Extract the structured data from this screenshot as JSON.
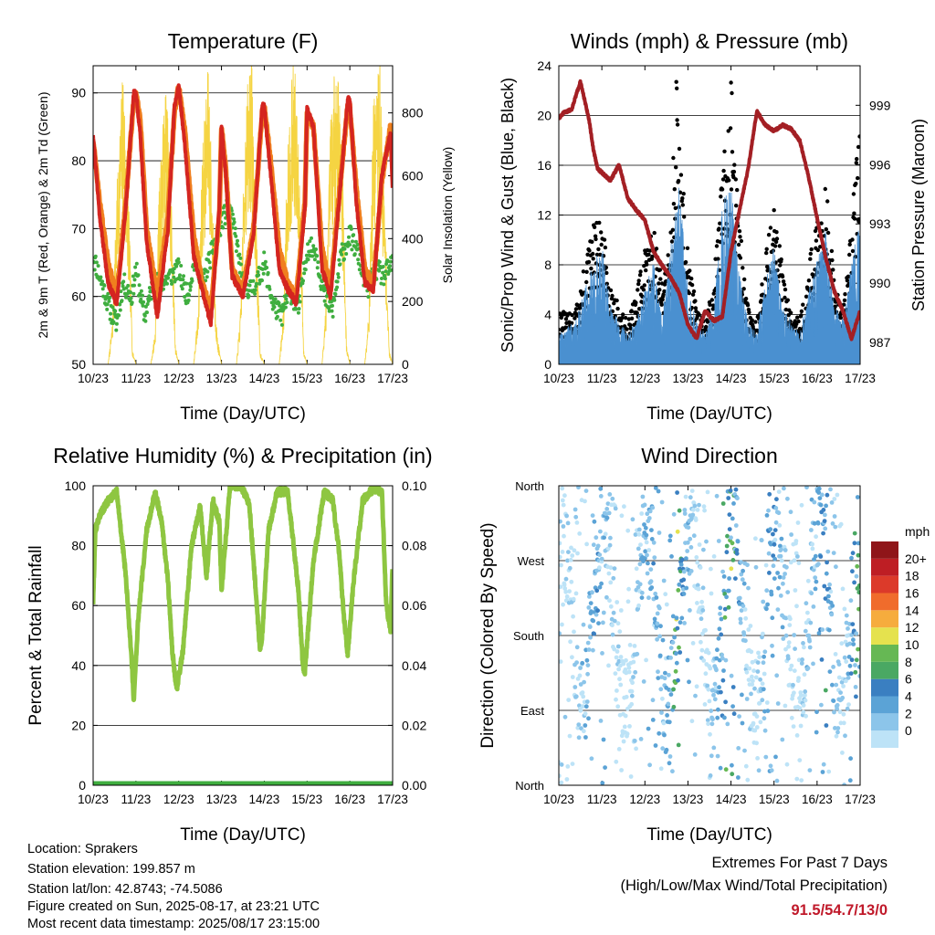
{
  "x_tick_labels": [
    "10/23",
    "11/23",
    "12/23",
    "13/23",
    "14/23",
    "15/23",
    "16/23",
    "17/23"
  ],
  "chart_data": [
    {
      "id": "temperature",
      "type": "line",
      "title": "Temperature (F)",
      "xlabel": "Time (Day/UTC)",
      "ylabel": "2m & 9m T (Red, Orange) & 2m Td (Green)",
      "y2label": "Solar Insolation (Yellow)",
      "ylim": [
        50,
        94
      ],
      "y2lim": [
        0,
        950
      ],
      "yticks": [
        50,
        60,
        70,
        80,
        90
      ],
      "y2ticks": [
        0,
        200,
        400,
        600,
        800
      ],
      "x_day_range": [
        10,
        17
      ],
      "grid": true,
      "series": [
        {
          "key": "t9m",
          "color": "#f07f1e",
          "style": "line",
          "x": [
            10.0,
            10.15,
            10.35,
            10.55,
            10.75,
            10.95,
            11.0,
            11.1,
            11.25,
            11.5,
            11.75,
            11.9,
            12.0,
            12.15,
            12.35,
            12.55,
            12.75,
            12.95,
            13.0,
            13.1,
            13.25,
            13.5,
            13.75,
            13.95,
            14.0,
            14.15,
            14.35,
            14.55,
            14.75,
            14.95,
            15.0,
            15.15,
            15.35,
            15.55,
            15.75,
            15.95,
            16.0,
            16.15,
            16.35,
            16.55,
            16.75,
            16.95,
            17.0
          ],
          "y": [
            83,
            74,
            65,
            60,
            73,
            89,
            90,
            86,
            70,
            60,
            72,
            87,
            91,
            84,
            69,
            62,
            58,
            72,
            85,
            79,
            64,
            61,
            70,
            87,
            88,
            80,
            67,
            62,
            60,
            74,
            87,
            85,
            67,
            61,
            75,
            88,
            88,
            76,
            64,
            62,
            77,
            85,
            84
          ]
        },
        {
          "key": "t2m",
          "color": "#d42520",
          "style": "line",
          "x": [
            10.0,
            10.15,
            10.35,
            10.55,
            10.75,
            10.95,
            11.0,
            11.1,
            11.25,
            11.5,
            11.75,
            11.9,
            12.0,
            12.15,
            12.35,
            12.55,
            12.75,
            12.95,
            13.0,
            13.1,
            13.25,
            13.5,
            13.75,
            13.95,
            14.0,
            14.15,
            14.35,
            14.55,
            14.75,
            14.95,
            15.0,
            15.15,
            15.35,
            15.55,
            15.75,
            15.95,
            16.0,
            16.15,
            16.35,
            16.55,
            16.75,
            16.95,
            17.0
          ],
          "y": [
            84,
            72,
            62,
            59,
            72,
            90,
            90,
            84,
            68,
            57,
            70,
            88,
            91,
            82,
            66,
            61,
            56,
            73,
            85,
            78,
            63,
            60,
            69,
            88,
            88,
            78,
            64,
            61,
            59,
            73,
            88,
            85,
            64,
            60,
            74,
            89,
            89,
            74,
            62,
            61,
            78,
            84,
            75
          ]
        },
        {
          "key": "td2m",
          "color": "#3fae3f",
          "style": "dots",
          "x": [
            10.0,
            10.2,
            10.4,
            10.55,
            10.7,
            10.9,
            11.0,
            11.2,
            11.4,
            11.6,
            11.8,
            12.0,
            12.2,
            12.4,
            12.55,
            12.75,
            12.9,
            13.0,
            13.15,
            13.3,
            13.5,
            13.7,
            13.9,
            14.0,
            14.2,
            14.4,
            14.6,
            14.8,
            15.0,
            15.2,
            15.4,
            15.6,
            15.8,
            16.0,
            16.2,
            16.4,
            16.6,
            16.8,
            17.0
          ],
          "y": [
            66,
            62,
            58,
            56,
            62,
            60,
            64,
            57,
            62,
            62,
            63,
            64,
            60,
            66,
            62,
            66,
            69,
            71,
            73,
            70,
            62,
            61,
            63,
            65,
            59,
            57,
            61,
            58,
            67,
            67,
            60,
            58,
            66,
            69,
            66,
            61,
            64,
            63,
            65
          ]
        },
        {
          "key": "solar",
          "axis": "y2",
          "color": "#f5d442",
          "style": "thin",
          "x": [
            10.0,
            10.35,
            10.45,
            10.55,
            10.7,
            10.85,
            10.92,
            11.0,
            11.35,
            11.45,
            11.55,
            11.7,
            11.85,
            11.92,
            12.0,
            12.35,
            12.45,
            12.55,
            12.7,
            12.85,
            12.9,
            13.0,
            13.35,
            13.45,
            13.55,
            13.7,
            13.85,
            13.9,
            14.0,
            14.35,
            14.45,
            14.55,
            14.7,
            14.85,
            14.92,
            15.0,
            15.35,
            15.45,
            15.55,
            15.7,
            15.85,
            15.92,
            16.0,
            16.35,
            16.45,
            16.55,
            16.7,
            16.85,
            16.92,
            17.0
          ],
          "y": [
            0,
            0,
            120,
            480,
            850,
            380,
            40,
            0,
            0,
            100,
            520,
            800,
            420,
            60,
            0,
            0,
            150,
            600,
            850,
            200,
            80,
            0,
            0,
            160,
            700,
            900,
            260,
            40,
            0,
            0,
            160,
            650,
            870,
            470,
            40,
            0,
            0,
            200,
            700,
            880,
            500,
            60,
            0,
            0,
            180,
            720,
            860,
            320,
            40,
            0
          ]
        }
      ]
    },
    {
      "id": "winds",
      "type": "line",
      "title": "Winds (mph) & Pressure (mb)",
      "xlabel": "Time (Day/UTC)",
      "ylabel": "Sonic/Prop Wind & Gust (Blue, Black)",
      "y2label": "Station Pressure (Maroon)",
      "ylim": [
        0,
        24
      ],
      "y2lim": [
        985.9,
        1001.0
      ],
      "yticks": [
        0,
        4,
        8,
        12,
        16,
        20,
        24
      ],
      "y2ticks": [
        987,
        990,
        993,
        996,
        999
      ],
      "x_day_range": [
        10,
        17
      ],
      "grid": true,
      "series": [
        {
          "key": "wind",
          "color": "#4a90d0",
          "style": "fill",
          "x": [
            10.0,
            10.2,
            10.4,
            10.6,
            10.8,
            11.0,
            11.2,
            11.4,
            11.6,
            11.8,
            12.0,
            12.2,
            12.4,
            12.6,
            12.8,
            13.0,
            13.2,
            13.4,
            13.6,
            13.8,
            14.0,
            14.2,
            14.4,
            14.6,
            14.8,
            15.0,
            15.2,
            15.4,
            15.6,
            15.8,
            16.0,
            16.2,
            16.4,
            16.6,
            16.8,
            17.0
          ],
          "y": [
            2,
            2.5,
            3,
            5,
            7,
            8,
            4,
            3,
            2,
            3,
            5,
            7,
            3,
            8,
            12,
            5,
            3,
            2,
            4,
            11,
            12,
            6,
            3,
            2,
            6,
            8,
            4,
            3,
            2,
            5,
            7,
            9,
            4,
            3,
            7,
            10
          ]
        },
        {
          "key": "gust",
          "color": "#000000",
          "style": "dots",
          "x": [
            10.0,
            10.2,
            10.4,
            10.6,
            10.8,
            11.0,
            11.2,
            11.4,
            11.6,
            11.8,
            12.0,
            12.2,
            12.4,
            12.6,
            12.75,
            12.8,
            13.0,
            13.2,
            13.4,
            13.6,
            13.8,
            14.0,
            14.2,
            14.4,
            14.6,
            14.8,
            15.0,
            15.2,
            15.4,
            15.6,
            15.8,
            16.0,
            16.2,
            16.4,
            16.6,
            16.8,
            17.0
          ],
          "y": [
            4,
            3.5,
            4,
            7,
            10,
            10,
            6,
            4,
            3,
            5,
            8,
            10,
            6,
            10,
            22,
            16,
            8,
            4,
            3,
            6,
            14,
            20,
            10,
            4,
            3,
            8,
            11,
            7,
            4,
            3,
            7,
            10,
            13,
            6,
            4,
            10,
            20
          ]
        },
        {
          "key": "pressure",
          "axis": "y2",
          "color": "#a31f24",
          "style": "line",
          "x": [
            10.0,
            10.1,
            10.3,
            10.5,
            10.7,
            10.8,
            10.9,
            11.0,
            11.2,
            11.4,
            11.6,
            11.8,
            12.0,
            12.2,
            12.4,
            12.6,
            12.8,
            13.0,
            13.2,
            13.4,
            13.6,
            13.8,
            14.0,
            14.2,
            14.4,
            14.6,
            14.8,
            15.0,
            15.2,
            15.4,
            15.6,
            15.8,
            16.0,
            16.2,
            16.4,
            16.6,
            16.8,
            17.0
          ],
          "y": [
            998.3,
            998.6,
            998.8,
            1000.2,
            998.3,
            996.8,
            995.8,
            995.6,
            995.2,
            996.0,
            994.3,
            993.7,
            993.2,
            991.6,
            990.9,
            990.3,
            989.5,
            987.9,
            987.2,
            988.6,
            988.1,
            988.3,
            991.6,
            993.7,
            995.8,
            998.7,
            998.0,
            997.7,
            998.0,
            997.8,
            997.2,
            995.4,
            993.3,
            991.3,
            989.6,
            988.6,
            987.2,
            988.6
          ]
        }
      ]
    },
    {
      "id": "humidity",
      "type": "line",
      "title": "Relative Humidity (%) & Precipitation (in)",
      "xlabel": "Time (Day/UTC)",
      "ylabel": "Percent & Total Rainfall",
      "ylim": [
        0,
        100
      ],
      "y2lim": [
        0,
        0.1
      ],
      "yticks": [
        0,
        20,
        40,
        60,
        80,
        100
      ],
      "y2ticks": [
        "0.00",
        "0.02",
        "0.04",
        "0.06",
        "0.08",
        "0.10"
      ],
      "x_day_range": [
        10,
        17
      ],
      "grid": true,
      "series": [
        {
          "key": "rh",
          "color": "#8ec641",
          "style": "line",
          "x": [
            10.0,
            10.05,
            10.15,
            10.35,
            10.55,
            10.75,
            10.9,
            10.95,
            11.05,
            11.25,
            11.45,
            11.6,
            11.75,
            11.85,
            11.95,
            12.1,
            12.3,
            12.5,
            12.65,
            12.8,
            12.95,
            13.0,
            13.2,
            13.45,
            13.65,
            13.8,
            13.9,
            13.95,
            14.1,
            14.3,
            14.55,
            14.8,
            14.9,
            14.95,
            15.15,
            15.4,
            15.6,
            15.75,
            15.85,
            15.95,
            16.1,
            16.3,
            16.55,
            16.75,
            16.85,
            16.95,
            17.0
          ],
          "y": [
            61,
            85,
            90,
            95,
            98,
            72,
            42,
            28,
            55,
            85,
            98,
            88,
            68,
            45,
            32,
            45,
            80,
            93,
            70,
            95,
            88,
            65,
            100,
            100,
            94,
            65,
            45,
            50,
            85,
            98,
            98,
            65,
            40,
            38,
            75,
            98,
            95,
            78,
            58,
            44,
            70,
            95,
            99,
            98,
            60,
            52,
            75
          ]
        },
        {
          "key": "precip",
          "axis": "y2",
          "color": "#3fae3f",
          "style": "line",
          "x": [
            10,
            17
          ],
          "y": [
            0,
            0
          ]
        }
      ]
    },
    {
      "id": "wind_direction",
      "type": "scatter",
      "title": "Wind Direction",
      "xlabel": "Time (Day/UTC)",
      "ylabel": "Direction (Colored By Speed)",
      "y_tick_labels": [
        "North",
        "East",
        "South",
        "West",
        "North"
      ],
      "colorbar_title": "mph",
      "colorbar_labels": [
        "0",
        "2",
        "4",
        "6",
        "8",
        "10",
        "12",
        "14",
        "16",
        "18",
        "20+"
      ],
      "colorbar_colors": [
        "#bde3f7",
        "#8cc5ea",
        "#5ba3d6",
        "#3a7fc1",
        "#4aa863",
        "#66b854",
        "#e5e24e",
        "#f6ac3d",
        "#f06c2c",
        "#dc3a2a",
        "#be1e24",
        "#8f1519"
      ],
      "x_day_range": [
        10,
        17
      ],
      "grid": true
    }
  ],
  "info": {
    "location": "Location: Sprakers",
    "elevation": "Station elevation: 199.857 m",
    "latlon": "Station lat/lon: 42.8743; -74.5086",
    "created": "Figure created on Sun, 2025-08-17, at 23:21 UTC",
    "timestamp": "Most recent data timestamp: 2025/08/17 23:15:00"
  },
  "extremes": {
    "title": "Extremes For Past 7 Days",
    "subtitle": "(High/Low/Max Wind/Total Precipitation)",
    "values": "91.5/54.7/13/0"
  }
}
